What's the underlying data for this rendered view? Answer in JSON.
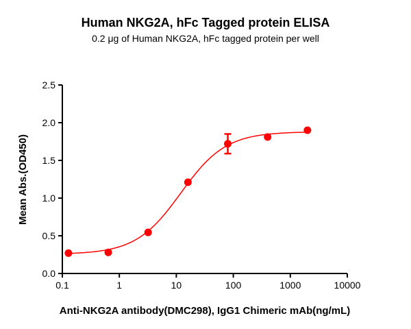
{
  "chart_data": {
    "type": "scatter",
    "title": "Human NKG2A, hFc Tagged protein ELISA",
    "subtitle": "0.2 μg of Human NKG2A, hFc tagged protein per well",
    "xlabel": "Anti-NKG2A antibody(DMC298), IgG1 Chimeric mAb(ng/mL)",
    "ylabel": "Mean Abs.(OD450)",
    "xscale": "log",
    "xlim": [
      0.1,
      10000
    ],
    "ylim": [
      0,
      2.5
    ],
    "xticks": [
      0.1,
      1,
      10,
      100,
      1000,
      10000
    ],
    "xtick_labels": [
      "0.1",
      "1",
      "10",
      "100",
      "1000",
      "10000"
    ],
    "yticks": [
      0,
      0.5,
      1,
      1.5,
      2,
      2.5
    ],
    "ytick_labels": [
      "0.0",
      "0.5",
      "1.0",
      "1.5",
      "2.0",
      "2.5"
    ],
    "grid": false,
    "color": "#ff0000",
    "points": [
      {
        "x": 0.128,
        "y": 0.27,
        "err": 0
      },
      {
        "x": 0.64,
        "y": 0.28,
        "err": 0
      },
      {
        "x": 3.2,
        "y": 0.545,
        "err": 0
      },
      {
        "x": 16,
        "y": 1.21,
        "err": 0
      },
      {
        "x": 80,
        "y": 1.72,
        "err": 0.13
      },
      {
        "x": 400,
        "y": 1.81,
        "err": 0
      },
      {
        "x": 2000,
        "y": 1.9,
        "err": 0
      }
    ],
    "fit": {
      "model": "4PL",
      "bottom": 0.255,
      "top": 1.88,
      "ec50": 12,
      "hill": 1.1,
      "x_range": [
        0.128,
        2000
      ]
    }
  }
}
